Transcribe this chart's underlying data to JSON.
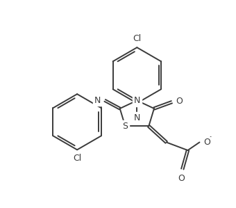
{
  "background_color": "#ffffff",
  "line_color": "#3a3a3a",
  "bond_width": 1.4,
  "figsize": [
    3.4,
    2.99
  ],
  "dpi": 100,
  "xlim": [
    0,
    340
  ],
  "ylim": [
    0,
    299
  ]
}
